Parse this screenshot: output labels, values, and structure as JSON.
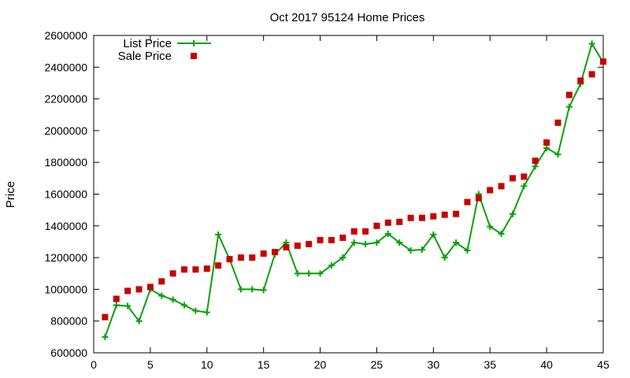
{
  "chart_data": {
    "type": "line",
    "title": "Oct 2017 95124 Home Prices",
    "xlabel": "",
    "ylabel": "Price",
    "xlim": [
      0,
      45
    ],
    "ylim": [
      600000,
      2600000
    ],
    "xticks": [
      0,
      5,
      10,
      15,
      20,
      25,
      30,
      35,
      40,
      45
    ],
    "yticks": [
      600000,
      800000,
      1000000,
      1200000,
      1400000,
      1600000,
      1800000,
      2000000,
      2200000,
      2400000,
      2600000
    ],
    "grid": false,
    "legend_position": "top-left",
    "series": [
      {
        "name": "List Price",
        "style": "line-points",
        "color": "#0aa00a",
        "x": [
          1,
          2,
          3,
          4,
          5,
          6,
          7,
          8,
          9,
          10,
          11,
          12,
          13,
          14,
          15,
          16,
          17,
          18,
          19,
          20,
          21,
          22,
          23,
          24,
          25,
          26,
          27,
          28,
          29,
          30,
          31,
          32,
          33,
          34,
          35,
          36,
          37,
          38,
          39,
          40,
          41,
          42,
          43,
          44,
          45
        ],
        "values": [
          700000,
          900000,
          895000,
          800000,
          1000000,
          960000,
          935000,
          900000,
          865000,
          855000,
          1345000,
          1190000,
          1000000,
          1000000,
          995000,
          1220000,
          1295000,
          1100000,
          1100000,
          1100000,
          1150000,
          1200000,
          1295000,
          1285000,
          1295000,
          1350000,
          1295000,
          1245000,
          1250000,
          1345000,
          1200000,
          1295000,
          1245000,
          1600000,
          1395000,
          1350000,
          1475000,
          1650000,
          1775000,
          1890000,
          1850000,
          2150000,
          2295000,
          2548000,
          2430000
        ]
      },
      {
        "name": "Sale Price",
        "style": "points",
        "color": "#c80000",
        "x": [
          1,
          2,
          3,
          4,
          5,
          6,
          7,
          8,
          9,
          10,
          11,
          12,
          13,
          14,
          15,
          16,
          17,
          18,
          19,
          20,
          21,
          22,
          23,
          24,
          25,
          26,
          27,
          28,
          29,
          30,
          31,
          32,
          33,
          34,
          35,
          36,
          37,
          38,
          39,
          40,
          41,
          42,
          43,
          44,
          45
        ],
        "values": [
          825000,
          940000,
          990000,
          1000000,
          1015000,
          1050000,
          1100000,
          1125000,
          1125000,
          1130000,
          1150000,
          1190000,
          1200000,
          1200000,
          1225000,
          1235000,
          1265000,
          1275000,
          1285000,
          1310000,
          1310000,
          1325000,
          1365000,
          1365000,
          1400000,
          1420000,
          1425000,
          1450000,
          1450000,
          1460000,
          1470000,
          1475000,
          1550000,
          1575000,
          1625000,
          1650000,
          1700000,
          1710000,
          1810000,
          1925000,
          2050000,
          2225000,
          2315000,
          2355000,
          2435000
        ]
      }
    ]
  }
}
